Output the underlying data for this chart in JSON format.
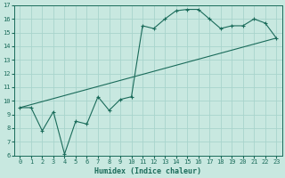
{
  "xlabel": "Humidex (Indice chaleur)",
  "ylabel": "",
  "bg_color": "#c8e8e0",
  "grid_color": "#a8d4cc",
  "line_color": "#1a6b5a",
  "xlim": [
    -0.5,
    23.5
  ],
  "ylim": [
    6,
    17
  ],
  "xticks": [
    0,
    1,
    2,
    3,
    4,
    5,
    6,
    7,
    8,
    9,
    10,
    11,
    12,
    13,
    14,
    15,
    16,
    17,
    18,
    19,
    20,
    21,
    22,
    23
  ],
  "yticks": [
    6,
    7,
    8,
    9,
    10,
    11,
    12,
    13,
    14,
    15,
    16,
    17
  ],
  "line1_x": [
    0,
    1,
    2,
    3,
    4,
    5,
    6,
    7,
    8,
    9,
    10,
    11,
    12,
    13,
    14,
    15,
    16,
    17,
    18,
    19,
    20,
    21,
    22,
    23
  ],
  "line1_y": [
    9.5,
    9.5,
    7.8,
    9.2,
    6.1,
    8.5,
    8.3,
    10.3,
    9.3,
    10.1,
    10.3,
    15.5,
    15.3,
    16.0,
    16.6,
    16.7,
    16.7,
    16.0,
    15.3,
    15.5,
    15.5,
    16.0,
    15.7,
    14.6
  ],
  "line2_x": [
    0,
    23
  ],
  "line2_y": [
    9.5,
    14.6
  ],
  "tick_fontsize": 5.0,
  "xlabel_fontsize": 6.0
}
